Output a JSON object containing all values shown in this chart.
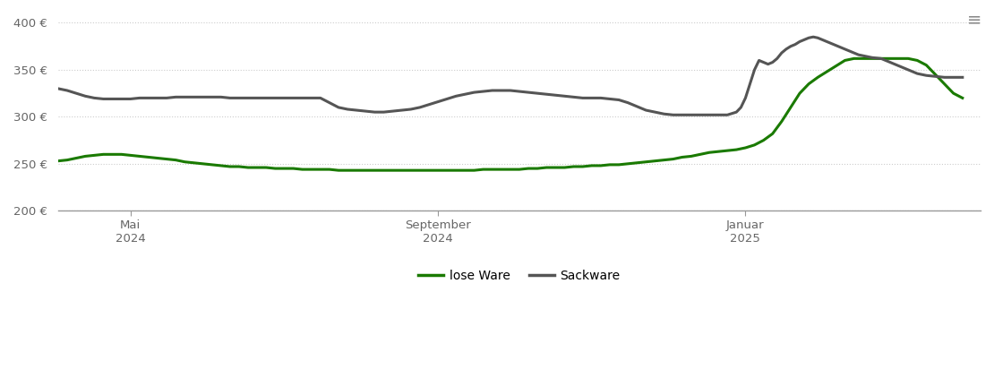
{
  "title": "",
  "background_color": "#ffffff",
  "grid_color": "#cccccc",
  "ylim": [
    200,
    410
  ],
  "yticks": [
    200,
    250,
    300,
    350,
    400
  ],
  "lose_ware_color": "#1a7a00",
  "sackware_color": "#555555",
  "line_width": 2.2,
  "legend_labels": [
    "lose Ware",
    "Sackware"
  ],
  "lose_ware_x": [
    0.0,
    0.01,
    0.02,
    0.03,
    0.04,
    0.05,
    0.06,
    0.07,
    0.08,
    0.09,
    0.1,
    0.11,
    0.12,
    0.13,
    0.14,
    0.15,
    0.16,
    0.17,
    0.18,
    0.19,
    0.2,
    0.21,
    0.22,
    0.23,
    0.24,
    0.25,
    0.26,
    0.27,
    0.28,
    0.29,
    0.3,
    0.31,
    0.32,
    0.33,
    0.34,
    0.35,
    0.36,
    0.37,
    0.38,
    0.39,
    0.4,
    0.41,
    0.42,
    0.43,
    0.44,
    0.45,
    0.46,
    0.47,
    0.48,
    0.49,
    0.5,
    0.51,
    0.52,
    0.53,
    0.54,
    0.55,
    0.56,
    0.57,
    0.58,
    0.59,
    0.6,
    0.61,
    0.62,
    0.63,
    0.64,
    0.65,
    0.66,
    0.67,
    0.68,
    0.69,
    0.7,
    0.71,
    0.72,
    0.73,
    0.74,
    0.75,
    0.76,
    0.77,
    0.78,
    0.79,
    0.8,
    0.81,
    0.82,
    0.83,
    0.84,
    0.85,
    0.86,
    0.87,
    0.88,
    0.89,
    0.9,
    0.91,
    0.92,
    0.93,
    0.94,
    0.95,
    0.96,
    0.97,
    0.98,
    0.99,
    1.0
  ],
  "lose_ware_y": [
    253,
    254,
    256,
    258,
    259,
    260,
    260,
    260,
    259,
    258,
    257,
    256,
    255,
    254,
    252,
    251,
    250,
    249,
    248,
    247,
    247,
    246,
    246,
    246,
    245,
    245,
    245,
    244,
    244,
    244,
    244,
    243,
    243,
    243,
    243,
    243,
    243,
    243,
    243,
    243,
    243,
    243,
    243,
    243,
    243,
    243,
    243,
    244,
    244,
    244,
    244,
    244,
    245,
    245,
    246,
    246,
    246,
    247,
    247,
    248,
    248,
    249,
    249,
    250,
    251,
    252,
    253,
    254,
    255,
    257,
    258,
    260,
    262,
    263,
    264,
    265,
    267,
    270,
    275,
    282,
    295,
    310,
    325,
    335,
    342,
    348,
    354,
    360,
    362,
    362,
    362,
    362,
    362,
    362,
    362,
    360,
    355,
    345,
    335,
    325,
    320
  ],
  "sackware_x": [
    0.0,
    0.01,
    0.02,
    0.03,
    0.04,
    0.05,
    0.06,
    0.07,
    0.08,
    0.09,
    0.1,
    0.11,
    0.12,
    0.13,
    0.14,
    0.15,
    0.16,
    0.17,
    0.18,
    0.19,
    0.2,
    0.21,
    0.22,
    0.23,
    0.24,
    0.25,
    0.26,
    0.27,
    0.28,
    0.29,
    0.3,
    0.31,
    0.32,
    0.33,
    0.34,
    0.35,
    0.36,
    0.37,
    0.38,
    0.39,
    0.4,
    0.41,
    0.42,
    0.43,
    0.44,
    0.45,
    0.46,
    0.47,
    0.48,
    0.49,
    0.5,
    0.51,
    0.52,
    0.53,
    0.54,
    0.55,
    0.56,
    0.57,
    0.58,
    0.59,
    0.6,
    0.61,
    0.62,
    0.63,
    0.64,
    0.65,
    0.66,
    0.67,
    0.68,
    0.69,
    0.7,
    0.71,
    0.72,
    0.73,
    0.74,
    0.75,
    0.755,
    0.76,
    0.765,
    0.77,
    0.775,
    0.78,
    0.785,
    0.79,
    0.795,
    0.8,
    0.805,
    0.81,
    0.815,
    0.82,
    0.825,
    0.83,
    0.835,
    0.84,
    0.845,
    0.85,
    0.855,
    0.86,
    0.865,
    0.87,
    0.875,
    0.88,
    0.885,
    0.89,
    0.895,
    0.9,
    0.91,
    0.92,
    0.93,
    0.94,
    0.95,
    0.96,
    0.97,
    0.98,
    0.99,
    1.0
  ],
  "sackware_y": [
    330,
    328,
    325,
    322,
    320,
    319,
    319,
    319,
    319,
    320,
    320,
    320,
    320,
    321,
    321,
    321,
    321,
    321,
    321,
    320,
    320,
    320,
    320,
    320,
    320,
    320,
    320,
    320,
    320,
    320,
    315,
    310,
    308,
    307,
    306,
    305,
    305,
    306,
    307,
    308,
    310,
    313,
    316,
    319,
    322,
    324,
    326,
    327,
    328,
    328,
    328,
    327,
    326,
    325,
    324,
    323,
    322,
    321,
    320,
    320,
    320,
    319,
    318,
    315,
    311,
    307,
    305,
    303,
    302,
    302,
    302,
    302,
    302,
    302,
    302,
    305,
    310,
    320,
    335,
    350,
    360,
    358,
    356,
    358,
    362,
    368,
    372,
    375,
    377,
    380,
    382,
    384,
    385,
    384,
    382,
    380,
    378,
    376,
    374,
    372,
    370,
    368,
    366,
    365,
    364,
    363,
    362,
    358,
    354,
    350,
    346,
    344,
    343,
    342,
    342,
    342
  ]
}
